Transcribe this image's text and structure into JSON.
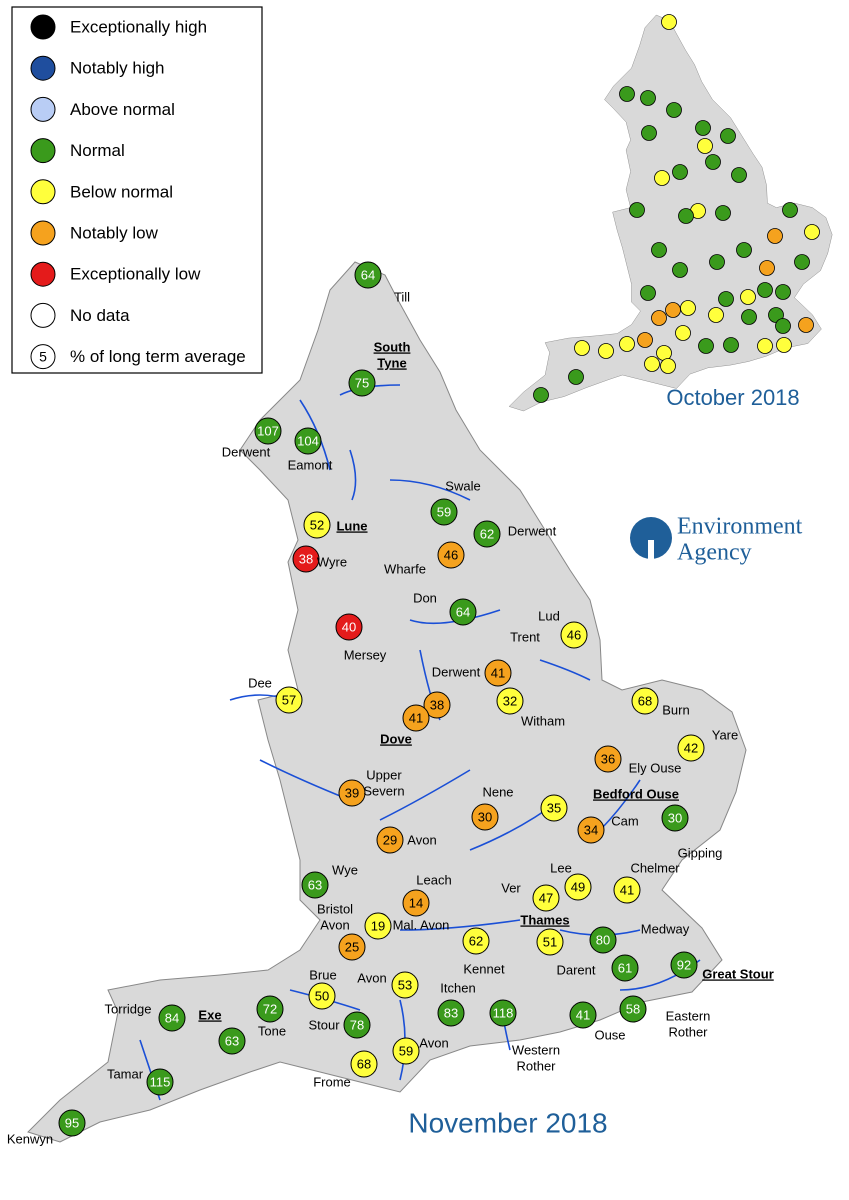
{
  "legend": [
    {
      "label": "Exceptionally high",
      "color": "#000000"
    },
    {
      "label": "Notably high",
      "color": "#1f4e9e"
    },
    {
      "label": "Above normal",
      "color": "#b9cdf5"
    },
    {
      "label": "Normal",
      "color": "#3a9a1c"
    },
    {
      "label": "Below normal",
      "color": "#ffff3c"
    },
    {
      "label": "Notably low",
      "color": "#f5a21e"
    },
    {
      "label": "Exceptionally low",
      "color": "#e41b1b"
    },
    {
      "label": "No data",
      "color": "#ffffff"
    },
    {
      "label": "% of long term average",
      "symbol": "5"
    }
  ],
  "inset": {
    "title": "October 2018",
    "dots": [
      "#ffff3c",
      "#3a9a1c",
      "#3a9a1c",
      "#3a9a1c",
      "#3a9a1c",
      "#3a9a1c",
      "#3a9a1c",
      "#ffff3c",
      "#3a9a1c",
      "#ffff3c",
      "#3a9a1c",
      "#3a9a1c",
      "#3a9a1c",
      "#ffff3c",
      "#3a9a1c",
      "#3a9a1c",
      "#3a9a1c",
      "#ffff3c",
      "#f5a21e",
      "#3a9a1c",
      "#3a9a1c",
      "#3a9a1c",
      "#f5a21e",
      "#3a9a1c",
      "#3a9a1c",
      "#3a9a1c",
      "#3a9a1c",
      "#ffff3c",
      "#3a9a1c",
      "#3a9a1c",
      "#ffff3c",
      "#f5a21e",
      "#f5a21e",
      "#ffff3c",
      "#3a9a1c",
      "#3a9a1c",
      "#f5a21e",
      "#3a9a1c",
      "#ffff3c",
      "#ffff3c",
      "#f5a21e",
      "#ffff3c",
      "#ffff3c",
      "#ffff3c",
      "#3a9a1c",
      "#3a9a1c",
      "#ffff3c",
      "#ffff3c",
      "#ffff3c",
      "#ffff3c",
      "#3a9a1c",
      "#3a9a1c"
    ]
  },
  "main": {
    "title": "November 2018",
    "stations": [
      {
        "value": 64,
        "name": [
          "Till"
        ],
        "color": "#3a9a1c"
      },
      {
        "value": 75,
        "name": [
          "South",
          "Tyne"
        ],
        "color": "#3a9a1c",
        "underline": true
      },
      {
        "value": 107,
        "name": [
          "Derwent"
        ],
        "color": "#3a9a1c"
      },
      {
        "value": 104,
        "name": [
          "Eamont"
        ],
        "color": "#3a9a1c"
      },
      {
        "value": 52,
        "name": [
          "Lune"
        ],
        "color": "#ffff3c",
        "underline": true
      },
      {
        "value": 38,
        "name": [
          "Wyre"
        ],
        "color": "#e41b1b"
      },
      {
        "value": 59,
        "name": [
          "Swale"
        ],
        "color": "#3a9a1c"
      },
      {
        "value": 62,
        "name": [
          "Derwent"
        ],
        "color": "#3a9a1c"
      },
      {
        "value": 46,
        "name": [
          "Wharfe"
        ],
        "color": "#f5a21e"
      },
      {
        "value": 64,
        "name": [
          "Don"
        ],
        "color": "#3a9a1c"
      },
      {
        "value": 40,
        "name": [
          "Mersey"
        ],
        "color": "#e41b1b"
      },
      {
        "value": 46,
        "name": [
          "Lud"
        ],
        "color": "#ffff3c"
      },
      {
        "value": 41,
        "name": [
          "Trent"
        ],
        "color": "#f5a21e"
      },
      {
        "value": 38,
        "name": [
          "Derwent"
        ],
        "color": "#f5a21e"
      },
      {
        "value": 41,
        "name": [
          "Dove"
        ],
        "color": "#f5a21e",
        "underline": true
      },
      {
        "value": 32,
        "name": [
          "Witham"
        ],
        "color": "#ffff3c"
      },
      {
        "value": 57,
        "name": [
          "Dee"
        ],
        "color": "#ffff3c"
      },
      {
        "value": 68,
        "name": [
          "Burn"
        ],
        "color": "#ffff3c"
      },
      {
        "value": 42,
        "name": [
          "Yare"
        ],
        "color": "#ffff3c"
      },
      {
        "value": 36,
        "name": [
          "Ely Ouse"
        ],
        "color": "#f5a21e"
      },
      {
        "value": 39,
        "name": [
          "Upper",
          "Severn"
        ],
        "color": "#f5a21e"
      },
      {
        "value": 30,
        "name": [
          "Nene"
        ],
        "color": "#f5a21e"
      },
      {
        "value": 35,
        "name": [
          "Bedford Ouse"
        ],
        "color": "#ffff3c",
        "underline": true
      },
      {
        "value": 34,
        "name": [
          "Cam"
        ],
        "color": "#f5a21e"
      },
      {
        "value": 30,
        "name": [
          "Gipping"
        ],
        "color": "#3a9a1c"
      },
      {
        "value": 29,
        "name": [
          "Avon"
        ],
        "color": "#f5a21e"
      },
      {
        "value": 63,
        "name": [
          "Wye"
        ],
        "color": "#3a9a1c"
      },
      {
        "value": 14,
        "name": [
          "Leach"
        ],
        "color": "#f5a21e"
      },
      {
        "value": 19,
        "name": [
          "Mal. Avon"
        ],
        "color": "#ffff3c"
      },
      {
        "value": 25,
        "name": [
          "Bristol",
          "Avon"
        ],
        "color": "#f5a21e"
      },
      {
        "value": 47,
        "name": [
          "Ver"
        ],
        "color": "#ffff3c"
      },
      {
        "value": 49,
        "name": [
          "Lee"
        ],
        "color": "#ffff3c"
      },
      {
        "value": 41,
        "name": [
          "Chelmer"
        ],
        "color": "#ffff3c"
      },
      {
        "value": 51,
        "name": [
          "Thames"
        ],
        "color": "#ffff3c",
        "underline": true
      },
      {
        "value": 62,
        "name": [
          "Kennet"
        ],
        "color": "#ffff3c"
      },
      {
        "value": 80,
        "name": [
          "Darent"
        ],
        "color": "#3a9a1c"
      },
      {
        "value": 61,
        "name": [
          "Medway"
        ],
        "color": "#3a9a1c"
      },
      {
        "value": 92,
        "name": [
          "Great Stour"
        ],
        "color": "#3a9a1c",
        "underline": true
      },
      {
        "value": 50,
        "name": [
          "Brue"
        ],
        "color": "#ffff3c"
      },
      {
        "value": 53,
        "name": [
          "Avon"
        ],
        "color": "#ffff3c"
      },
      {
        "value": 72,
        "name": [
          "Tone"
        ],
        "color": "#3a9a1c"
      },
      {
        "value": 84,
        "name": [
          "Torridge"
        ],
        "color": "#3a9a1c"
      },
      {
        "value": 63,
        "name": [
          "Exe"
        ],
        "color": "#3a9a1c",
        "underline": true
      },
      {
        "value": 78,
        "name": [
          "Stour"
        ],
        "color": "#3a9a1c"
      },
      {
        "value": 83,
        "name": [
          "Itchen"
        ],
        "color": "#3a9a1c"
      },
      {
        "value": 118,
        "name": [
          "Western",
          "Rother"
        ],
        "color": "#3a9a1c"
      },
      {
        "value": 41,
        "name": [
          "Ouse"
        ],
        "color": "#3a9a1c"
      },
      {
        "value": 58,
        "name": [
          "Eastern",
          "Rother"
        ],
        "color": "#3a9a1c"
      },
      {
        "value": 68,
        "name": [
          "Frome"
        ],
        "color": "#ffff3c"
      },
      {
        "value": 59,
        "name": [
          "Avon"
        ],
        "color": "#ffff3c"
      },
      {
        "value": 115,
        "name": [
          "Tamar"
        ],
        "color": "#3a9a1c"
      },
      {
        "value": 95,
        "name": [
          "Kenwyn"
        ],
        "color": "#3a9a1c"
      }
    ]
  },
  "logo": {
    "lines": [
      "Environment",
      "Agency"
    ]
  }
}
